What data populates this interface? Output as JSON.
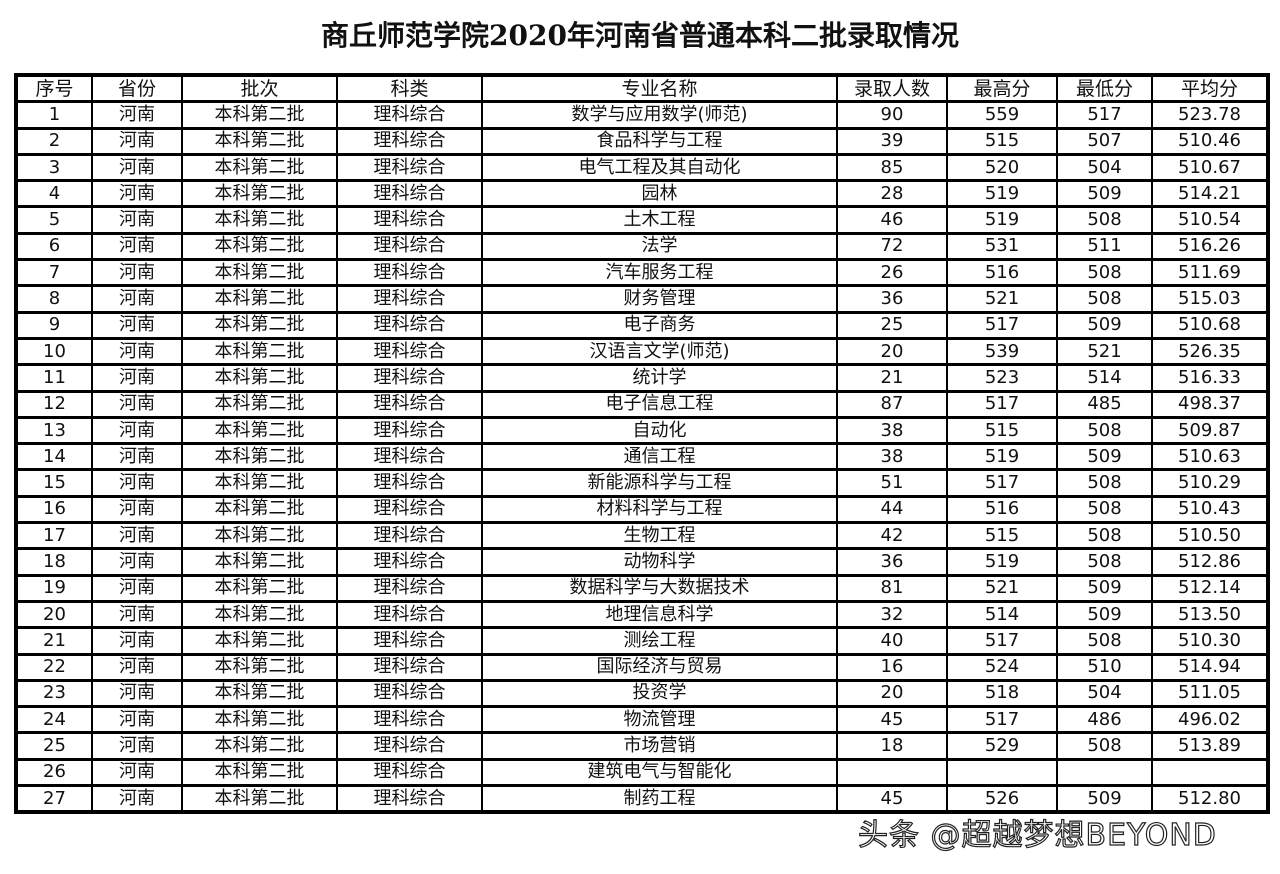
{
  "title": "商丘师范学院2020年河南省普通本科二批录取情况",
  "table": {
    "headers": [
      "序号",
      "省份",
      "批次",
      "科类",
      "专业名称",
      "录取人数",
      "最高分",
      "最低分",
      "平均分"
    ],
    "rows": [
      [
        "1",
        "河南",
        "本科第二批",
        "理科综合",
        "数学与应用数学(师范)",
        "90",
        "559",
        "517",
        "523.78"
      ],
      [
        "2",
        "河南",
        "本科第二批",
        "理科综合",
        "食品科学与工程",
        "39",
        "515",
        "507",
        "510.46"
      ],
      [
        "3",
        "河南",
        "本科第二批",
        "理科综合",
        "电气工程及其自动化",
        "85",
        "520",
        "504",
        "510.67"
      ],
      [
        "4",
        "河南",
        "本科第二批",
        "理科综合",
        "园林",
        "28",
        "519",
        "509",
        "514.21"
      ],
      [
        "5",
        "河南",
        "本科第二批",
        "理科综合",
        "土木工程",
        "46",
        "519",
        "508",
        "510.54"
      ],
      [
        "6",
        "河南",
        "本科第二批",
        "理科综合",
        "法学",
        "72",
        "531",
        "511",
        "516.26"
      ],
      [
        "7",
        "河南",
        "本科第二批",
        "理科综合",
        "汽车服务工程",
        "26",
        "516",
        "508",
        "511.69"
      ],
      [
        "8",
        "河南",
        "本科第二批",
        "理科综合",
        "财务管理",
        "36",
        "521",
        "508",
        "515.03"
      ],
      [
        "9",
        "河南",
        "本科第二批",
        "理科综合",
        "电子商务",
        "25",
        "517",
        "509",
        "510.68"
      ],
      [
        "10",
        "河南",
        "本科第二批",
        "理科综合",
        "汉语言文学(师范)",
        "20",
        "539",
        "521",
        "526.35"
      ],
      [
        "11",
        "河南",
        "本科第二批",
        "理科综合",
        "统计学",
        "21",
        "523",
        "514",
        "516.33"
      ],
      [
        "12",
        "河南",
        "本科第二批",
        "理科综合",
        "电子信息工程",
        "87",
        "517",
        "485",
        "498.37"
      ],
      [
        "13",
        "河南",
        "本科第二批",
        "理科综合",
        "自动化",
        "38",
        "515",
        "508",
        "509.87"
      ],
      [
        "14",
        "河南",
        "本科第二批",
        "理科综合",
        "通信工程",
        "38",
        "519",
        "509",
        "510.63"
      ],
      [
        "15",
        "河南",
        "本科第二批",
        "理科综合",
        "新能源科学与工程",
        "51",
        "517",
        "508",
        "510.29"
      ],
      [
        "16",
        "河南",
        "本科第二批",
        "理科综合",
        "材料科学与工程",
        "44",
        "516",
        "508",
        "510.43"
      ],
      [
        "17",
        "河南",
        "本科第二批",
        "理科综合",
        "生物工程",
        "42",
        "515",
        "508",
        "510.50"
      ],
      [
        "18",
        "河南",
        "本科第二批",
        "理科综合",
        "动物科学",
        "36",
        "519",
        "508",
        "512.86"
      ],
      [
        "19",
        "河南",
        "本科第二批",
        "理科综合",
        "数据科学与大数据技术",
        "81",
        "521",
        "509",
        "512.14"
      ],
      [
        "20",
        "河南",
        "本科第二批",
        "理科综合",
        "地理信息科学",
        "32",
        "514",
        "509",
        "513.50"
      ],
      [
        "21",
        "河南",
        "本科第二批",
        "理科综合",
        "测绘工程",
        "40",
        "517",
        "508",
        "510.30"
      ],
      [
        "22",
        "河南",
        "本科第二批",
        "理科综合",
        "国际经济与贸易",
        "16",
        "524",
        "510",
        "514.94"
      ],
      [
        "23",
        "河南",
        "本科第二批",
        "理科综合",
        "投资学",
        "20",
        "518",
        "504",
        "511.05"
      ],
      [
        "24",
        "河南",
        "本科第二批",
        "理科综合",
        "物流管理",
        "45",
        "517",
        "486",
        "496.02"
      ],
      [
        "25",
        "河南",
        "本科第二批",
        "理科综合",
        "市场营销",
        "18",
        "529",
        "508",
        "513.89"
      ],
      [
        "26",
        "河南",
        "本科第二批",
        "理科综合",
        "建筑电气与智能化",
        "",
        "",
        "",
        ""
      ],
      [
        "27",
        "河南",
        "本科第二批",
        "理科综合",
        "制药工程",
        "45",
        "526",
        "509",
        "512.80"
      ]
    ]
  },
  "watermark": "头条 @超越梦想BEYOND"
}
